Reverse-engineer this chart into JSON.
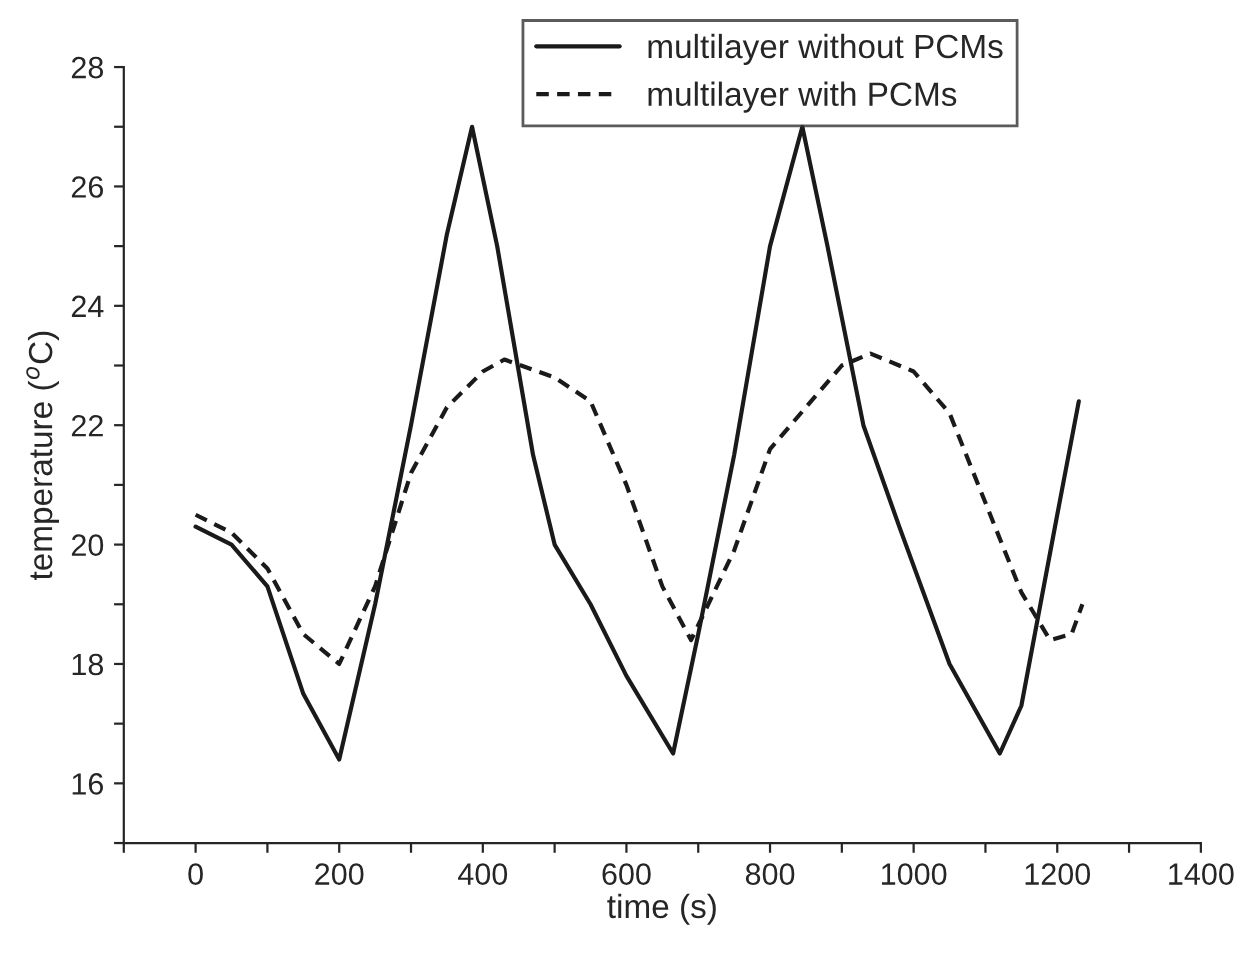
{
  "chart_data": {
    "type": "line",
    "xlabel": "time (s)",
    "ylabel": "temperature ($^{o}$C)",
    "xlim": [
      -100,
      1400
    ],
    "ylim": [
      15,
      28
    ],
    "xticks": [
      {
        "value": -100,
        "label": null
      },
      0,
      {
        "value": 100,
        "label": null
      },
      200,
      {
        "value": 300,
        "label": null
      },
      400,
      {
        "value": 500,
        "label": null
      },
      600,
      {
        "value": 700,
        "label": null
      },
      800,
      {
        "value": 900,
        "label": null
      },
      1000,
      {
        "value": 1100,
        "label": null
      },
      1200,
      {
        "value": 1300,
        "label": null
      },
      1400
    ],
    "yticks": [
      {
        "value": 15,
        "label": null
      },
      16,
      {
        "value": 17,
        "label": null
      },
      18,
      {
        "value": 19,
        "label": null
      },
      20,
      {
        "value": 21,
        "label": null
      },
      22,
      {
        "value": 23,
        "label": null
      },
      24,
      {
        "value": 25,
        "label": null
      },
      26,
      {
        "value": 27,
        "label": null
      },
      28
    ],
    "grid": false,
    "legend": "top",
    "marker": "none",
    "series": [
      {
        "name": "multilayer without PCMs",
        "color": "#1a1a1a",
        "line_style": "solid",
        "x": [
          0,
          50,
          100,
          150,
          200,
          250,
          300,
          350,
          385,
          420,
          470,
          500,
          550,
          600,
          665,
          700,
          750,
          800,
          845,
          880,
          930,
          980,
          1050,
          1120,
          1150,
          1200,
          1230
        ],
        "values": [
          20.3,
          20.0,
          19.3,
          17.5,
          16.4,
          19.0,
          22.0,
          25.2,
          27.0,
          25.0,
          21.5,
          20.0,
          19.0,
          17.8,
          16.5,
          18.5,
          21.5,
          25.0,
          27.0,
          25.0,
          22.0,
          20.3,
          18.0,
          16.5,
          17.3,
          20.5,
          22.4
        ]
      },
      {
        "name": "multilayer with PCMs",
        "color": "#1a1a1a",
        "line_style": "dashed",
        "x": [
          0,
          50,
          100,
          150,
          200,
          250,
          300,
          350,
          400,
          430,
          500,
          550,
          600,
          650,
          690,
          750,
          800,
          850,
          900,
          940,
          1000,
          1050,
          1100,
          1150,
          1190,
          1220,
          1235
        ],
        "values": [
          20.5,
          20.2,
          19.6,
          18.5,
          18.0,
          19.3,
          21.2,
          22.3,
          22.9,
          23.1,
          22.8,
          22.4,
          21.0,
          19.3,
          18.4,
          19.9,
          21.6,
          22.3,
          23.0,
          23.2,
          22.9,
          22.2,
          20.7,
          19.2,
          18.4,
          18.5,
          19.0
        ]
      }
    ]
  }
}
